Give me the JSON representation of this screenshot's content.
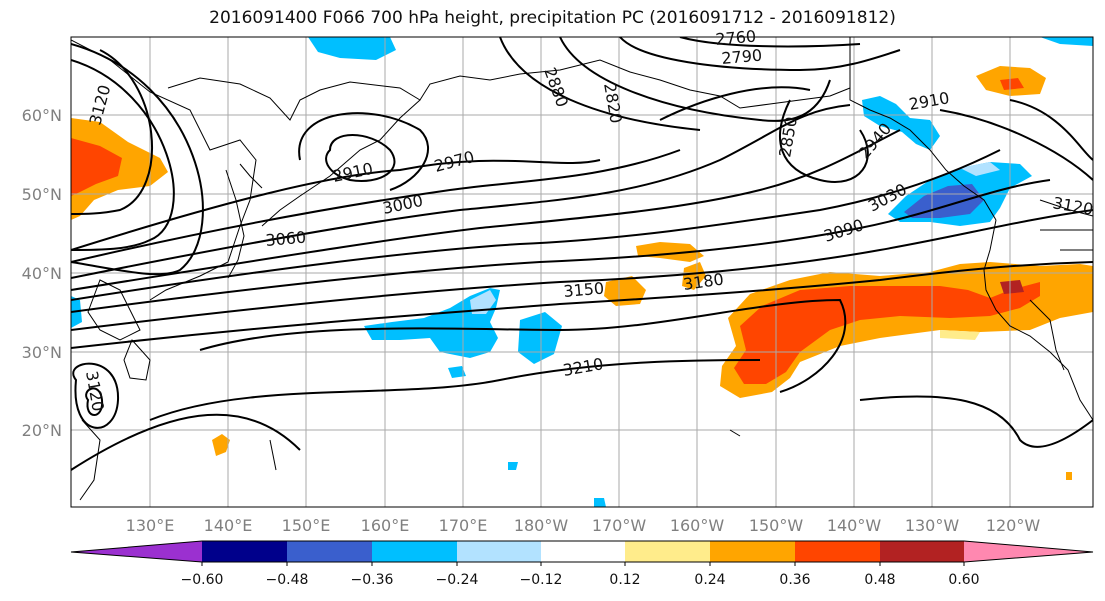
{
  "title": "2016091400 F066 700 hPa height, precipitation PC (2016091712 - 2016091812)",
  "lat_labels": [
    "60°N",
    "50°N",
    "40°N",
    "30°N",
    "20°N"
  ],
  "lon_labels": [
    "130°E",
    "140°E",
    "150°E",
    "160°E",
    "170°E",
    "180°W",
    "170°W",
    "160°W",
    "150°W",
    "140°W",
    "130°W",
    "120°W"
  ],
  "contour_labels": [
    "2760",
    "2790",
    "2820",
    "2850",
    "2880",
    "2910",
    "2910",
    "2940",
    "2970",
    "3000",
    "3030",
    "3060",
    "3090",
    "3120",
    "3120",
    "3120",
    "3150",
    "3180",
    "3210"
  ],
  "colorbar": {
    "ticks": [
      "−0.60",
      "−0.48",
      "−0.36",
      "−0.24",
      "−0.12",
      "0.12",
      "0.24",
      "0.36",
      "0.48",
      "0.60"
    ],
    "colors": [
      "#9b30d0",
      "#00008b",
      "#3a5fcd",
      "#00bfff",
      "#b2e2ff",
      "#ffffff",
      "#ffec8b",
      "#ffa500",
      "#ff4500",
      "#b22222",
      "#ff88b0"
    ]
  },
  "palette": {
    "pos_low": "#ffec8b",
    "pos_mid": "#ffa500",
    "pos_high": "#ff4500",
    "pos_top": "#b22222",
    "neg_low": "#b2e2ff",
    "neg_mid": "#00bfff",
    "neg_high": "#3a5fcd"
  }
}
